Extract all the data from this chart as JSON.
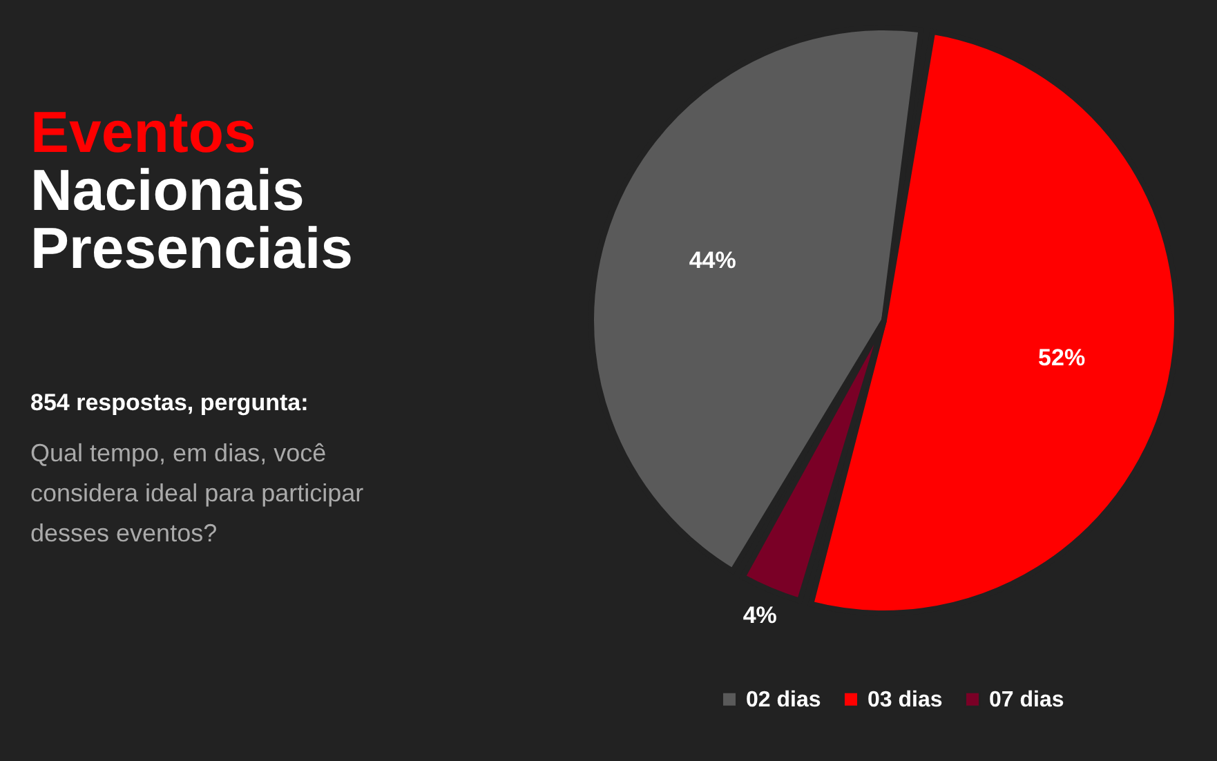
{
  "chart_data": {
    "type": "pie",
    "title": "Eventos Nacionais Presenciais",
    "subtitle": "854 respostas, pergunta:",
    "annotations": [
      "Qual tempo, em dias, você considera ideal para participar desses eventos?"
    ],
    "categories": [
      "02 dias",
      "03 dias",
      "07 dias"
    ],
    "values": [
      44,
      52,
      4
    ],
    "colors": [
      "#5a5a5a",
      "#ff0000",
      "#7a0026"
    ],
    "value_labels": [
      "44%",
      "52%",
      "4%"
    ],
    "legend": "bottom"
  }
}
